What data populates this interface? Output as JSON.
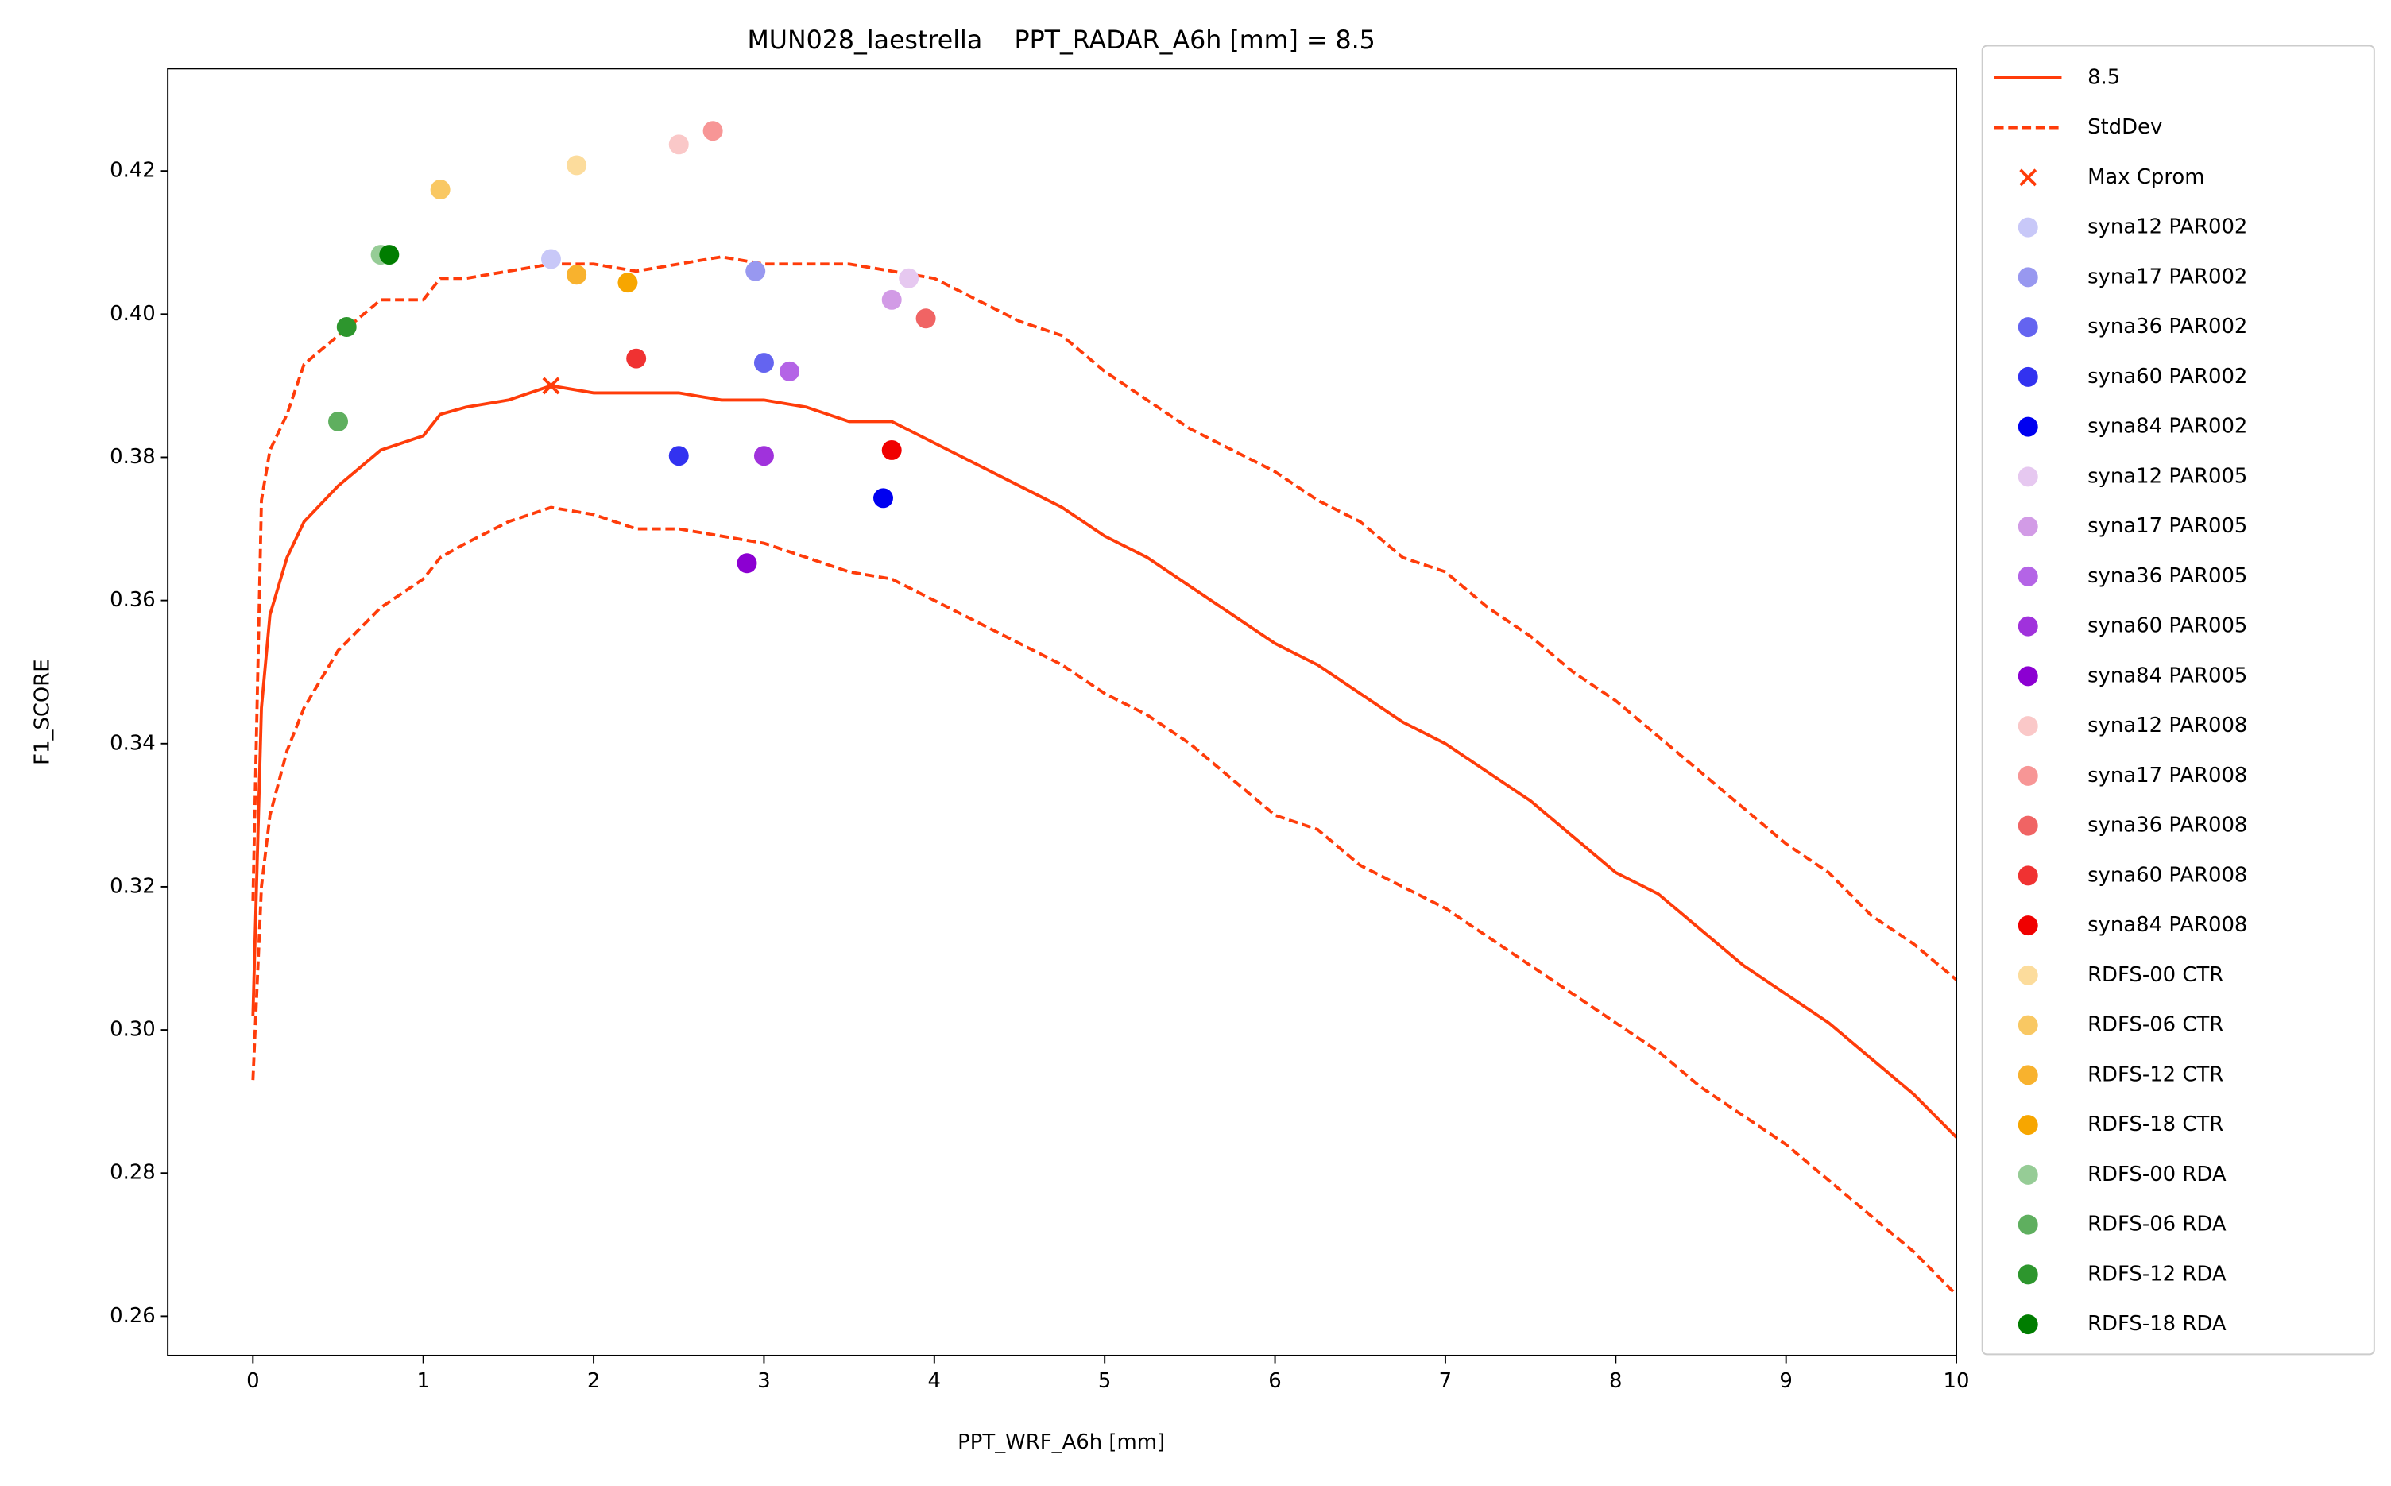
{
  "chart_data": {
    "type": "line",
    "title": "MUN028_laestrella    PPT_RADAR_A6h [mm] = 8.5",
    "xlabel": "PPT_WRF_A6h [mm]",
    "ylabel": "F1_SCORE",
    "x": [
      0,
      0.05,
      0.1,
      0.2,
      0.3,
      0.5,
      0.75,
      1.0,
      1.1,
      1.25,
      1.5,
      1.75,
      2.0,
      2.25,
      2.5,
      2.75,
      3.0,
      3.25,
      3.5,
      3.75,
      4.0,
      4.25,
      4.5,
      4.75,
      5.0,
      5.25,
      5.5,
      5.75,
      6.0,
      6.25,
      6.5,
      6.75,
      7.0,
      7.25,
      7.5,
      7.75,
      8.0,
      8.25,
      8.5,
      8.75,
      9.0,
      9.25,
      9.5,
      9.75,
      10
    ],
    "series": [
      {
        "name": "8.5",
        "color": "#ff3c0a",
        "style": "solid",
        "values": [
          0.302,
          0.345,
          0.358,
          0.366,
          0.371,
          0.376,
          0.381,
          0.383,
          0.386,
          0.387,
          0.388,
          0.39,
          0.389,
          0.389,
          0.389,
          0.388,
          0.388,
          0.387,
          0.385,
          0.385,
          0.382,
          0.379,
          0.376,
          0.373,
          0.369,
          0.366,
          0.362,
          0.358,
          0.354,
          0.351,
          0.347,
          0.343,
          0.34,
          0.336,
          0.332,
          0.327,
          0.322,
          0.319,
          0.314,
          0.309,
          0.305,
          0.301,
          0.296,
          0.291,
          0.285
        ]
      },
      {
        "name": "StdDev",
        "color": "#ff3c0a",
        "style": "dashed",
        "upper": [
          0.318,
          0.374,
          0.381,
          0.386,
          0.393,
          0.397,
          0.402,
          0.402,
          0.405,
          0.405,
          0.406,
          0.407,
          0.407,
          0.406,
          0.407,
          0.408,
          0.407,
          0.407,
          0.407,
          0.406,
          0.405,
          0.402,
          0.399,
          0.397,
          0.392,
          0.388,
          0.384,
          0.381,
          0.378,
          0.374,
          0.371,
          0.366,
          0.364,
          0.359,
          0.355,
          0.35,
          0.346,
          0.341,
          0.336,
          0.331,
          0.326,
          0.322,
          0.316,
          0.312,
          0.307
        ],
        "lower": [
          0.293,
          0.32,
          0.33,
          0.339,
          0.345,
          0.353,
          0.359,
          0.363,
          0.366,
          0.368,
          0.371,
          0.373,
          0.372,
          0.37,
          0.37,
          0.369,
          0.368,
          0.366,
          0.364,
          0.363,
          0.36,
          0.357,
          0.354,
          0.351,
          0.347,
          0.344,
          0.34,
          0.335,
          0.33,
          0.328,
          0.323,
          0.32,
          0.317,
          0.313,
          0.309,
          0.305,
          0.301,
          0.297,
          0.292,
          0.288,
          0.284,
          0.279,
          0.274,
          0.269,
          0.263
        ]
      }
    ],
    "max": {
      "name": "Max Cprom",
      "color": "#ff3c0a",
      "x": 1.75,
      "y": 0.39
    },
    "points": [
      {
        "name": "syna12 PAR002",
        "color": "#c8c8f8",
        "x": 1.75,
        "y": 0.4077
      },
      {
        "name": "syna17 PAR002",
        "color": "#9898f0",
        "x": 2.95,
        "y": 0.406
      },
      {
        "name": "syna36 PAR002",
        "color": "#6464f0",
        "x": 3.0,
        "y": 0.3932
      },
      {
        "name": "syna60 PAR002",
        "color": "#3232f0",
        "x": 2.5,
        "y": 0.3802
      },
      {
        "name": "syna84 PAR002",
        "color": "#0000f0",
        "x": 3.7,
        "y": 0.3743
      },
      {
        "name": "syna12 PAR005",
        "color": "#e6c8f0",
        "x": 3.85,
        "y": 0.405
      },
      {
        "name": "syna17 PAR005",
        "color": "#d29be6",
        "x": 3.75,
        "y": 0.402
      },
      {
        "name": "syna36 PAR005",
        "color": "#b464e6",
        "x": 3.15,
        "y": 0.392
      },
      {
        "name": "syna60 PAR005",
        "color": "#a032dc",
        "x": 3.0,
        "y": 0.3802
      },
      {
        "name": "syna84 PAR005",
        "color": "#8c00d2",
        "x": 2.9,
        "y": 0.3652
      },
      {
        "name": "syna12 PAR008",
        "color": "#fac8c8",
        "x": 2.5,
        "y": 0.4237
      },
      {
        "name": "syna17 PAR008",
        "color": "#f79696",
        "x": 2.7,
        "y": 0.4256
      },
      {
        "name": "syna36 PAR008",
        "color": "#f06464",
        "x": 3.95,
        "y": 0.3994
      },
      {
        "name": "syna60 PAR008",
        "color": "#f03232",
        "x": 2.25,
        "y": 0.3938
      },
      {
        "name": "syna84 PAR008",
        "color": "#f00000",
        "x": 3.75,
        "y": 0.381
      },
      {
        "name": "RDFS-00 CTR",
        "color": "#fcdc9c",
        "x": 1.9,
        "y": 0.4208
      },
      {
        "name": "RDFS-06 CTR",
        "color": "#f9c863",
        "x": 1.1,
        "y": 0.4174
      },
      {
        "name": "RDFS-12 CTR",
        "color": "#f8b22e",
        "x": 1.9,
        "y": 0.4055
      },
      {
        "name": "RDFS-18 CTR",
        "color": "#f7a600",
        "x": 2.2,
        "y": 0.4044
      },
      {
        "name": "RDFS-00 RDA",
        "color": "#96cc96",
        "x": 0.75,
        "y": 0.4083
      },
      {
        "name": "RDFS-06 RDA",
        "color": "#5faf5f",
        "x": 0.5,
        "y": 0.385
      },
      {
        "name": "RDFS-12 RDA",
        "color": "#2d962d",
        "x": 0.55,
        "y": 0.3982
      },
      {
        "name": "RDFS-18 RDA",
        "color": "#007d00",
        "x": 0.8,
        "y": 0.4083
      }
    ],
    "xlim": [
      -0.5,
      10
    ],
    "ylim": [
      0.2545,
      0.4343
    ],
    "xticks": [
      0,
      1,
      2,
      3,
      4,
      5,
      6,
      7,
      8,
      9,
      10
    ],
    "yticks": [
      0.26,
      0.28,
      {
        "value": 0.3,
        "label": "0.30"
      },
      0.32,
      0.34,
      0.36,
      0.38,
      {
        "value": 0.4,
        "label": "0.40"
      },
      0.42
    ],
    "legend": "outside-right"
  }
}
